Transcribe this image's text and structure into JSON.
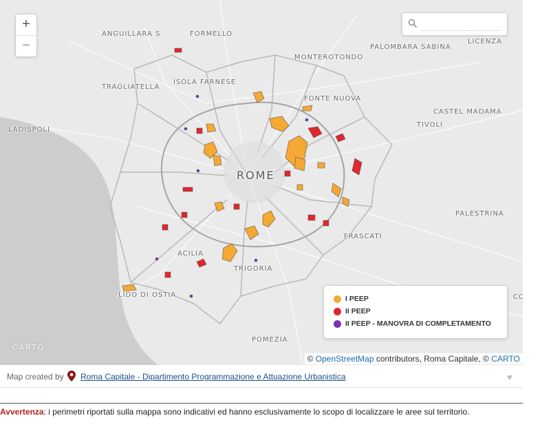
{
  "map": {
    "places": [
      {
        "name": "ANGUILLARA S",
        "cls": ""
      },
      {
        "name": "FORMELLO",
        "cls": ""
      },
      {
        "name": "MONTEROTONDO",
        "cls": ""
      },
      {
        "name": "PALOMBARA SABINA",
        "cls": ""
      },
      {
        "name": "LICENZA",
        "cls": ""
      },
      {
        "name": "TRAGLIATELLA",
        "cls": ""
      },
      {
        "name": "ISOLA FARNESE",
        "cls": ""
      },
      {
        "name": "FONTE NUOVA",
        "cls": ""
      },
      {
        "name": "CASTEL MADAMA",
        "cls": ""
      },
      {
        "name": "LADISPOLI",
        "cls": ""
      },
      {
        "name": "TIVOLI",
        "cls": ""
      },
      {
        "name": "ROME",
        "cls": "big"
      },
      {
        "name": "PALESTRINA",
        "cls": ""
      },
      {
        "name": "FRASCATI",
        "cls": ""
      },
      {
        "name": "ACILIA",
        "cls": ""
      },
      {
        "name": "TRIGORIA",
        "cls": ""
      },
      {
        "name": "LIDO DI OSTIA",
        "cls": ""
      },
      {
        "name": "POMEZIA",
        "cls": ""
      },
      {
        "name": "CO",
        "cls": ""
      }
    ],
    "colors": {
      "land": "#eaeaea",
      "sea": "#cdcdcd",
      "peep1": "#f5a833",
      "peep2": "#e0262e",
      "peep2_manovra": "#7b2fb5"
    }
  },
  "zoom": {
    "in_label": "+",
    "out_label": "−"
  },
  "search": {
    "placeholder": "",
    "value": ""
  },
  "legend": {
    "items": [
      {
        "label": "I PEEP",
        "color": "#f5a833"
      },
      {
        "label": "II PEEP",
        "color": "#e0262e"
      },
      {
        "label": "II PEEP - MANOVRA DI COMPLETAMENTO",
        "color": "#7b2fb5"
      }
    ]
  },
  "carto_logo": "CARTO",
  "attribution": {
    "prefix": "© ",
    "osm": "OpenStreetMap",
    "middle": " contributors, Roma Capitale, © ",
    "carto": "CARTO"
  },
  "footer": {
    "made_by": "Map created by",
    "link": "Roma Capitale - Dipartimento Programmazione e Attuazione Urbanistica",
    "heart": "♥"
  },
  "warning": {
    "label": "Avvertenza",
    "text": ": i perimetri riportati sulla mappa sono indicativi ed hanno esclusivamente lo scopo di localizzare le aree sul territorio."
  }
}
